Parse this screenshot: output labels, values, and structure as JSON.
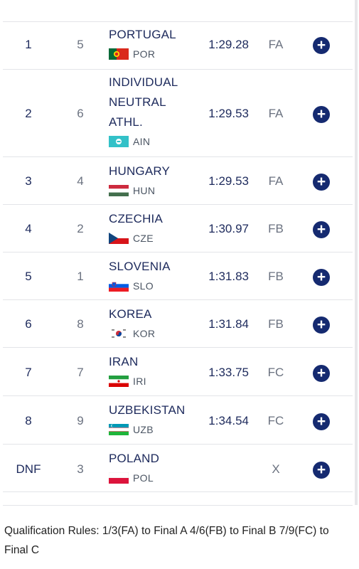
{
  "rows": [
    {
      "rank": "1",
      "lane": "5",
      "name": "PORTUGAL",
      "code": "POR",
      "flag": "portugal-flag-icon",
      "time": "1:29.28",
      "qual": "FA"
    },
    {
      "rank": "2",
      "lane": "6",
      "name": "INDIVIDUAL NEUTRAL ATHL.",
      "code": "AIN",
      "flag": "neutral-athletes-flag-icon",
      "time": "1:29.53",
      "qual": "FA"
    },
    {
      "rank": "3",
      "lane": "4",
      "name": "HUNGARY",
      "code": "HUN",
      "flag": "hungary-flag-icon",
      "time": "1:29.53",
      "qual": "FA"
    },
    {
      "rank": "4",
      "lane": "2",
      "name": "CZECHIA",
      "code": "CZE",
      "flag": "czechia-flag-icon",
      "time": "1:30.97",
      "qual": "FB"
    },
    {
      "rank": "5",
      "lane": "1",
      "name": "SLOVENIA",
      "code": "SLO",
      "flag": "slovenia-flag-icon",
      "time": "1:31.83",
      "qual": "FB"
    },
    {
      "rank": "6",
      "lane": "8",
      "name": "KOREA",
      "code": "KOR",
      "flag": "korea-flag-icon",
      "time": "1:31.84",
      "qual": "FB"
    },
    {
      "rank": "7",
      "lane": "7",
      "name": "IRAN",
      "code": "IRI",
      "flag": "iran-flag-icon",
      "time": "1:33.75",
      "qual": "FC"
    },
    {
      "rank": "8",
      "lane": "9",
      "name": "UZBEKISTAN",
      "code": "UZB",
      "flag": "uzbekistan-flag-icon",
      "time": "1:34.54",
      "qual": "FC"
    },
    {
      "rank": "DNF",
      "lane": "3",
      "name": "POLAND",
      "code": "POL",
      "flag": "poland-flag-icon",
      "time": "",
      "qual": "X"
    }
  ],
  "expand_icon": "plus-circle-icon",
  "rules_text": "Qualification Rules: 1/3(FA) to Final A 4/6(FB) to Final B 7/9(FC) to Final C",
  "colors": {
    "navy": "#152a70",
    "text": "#1d2a5c",
    "muted": "#6b7280",
    "divider": "#e3e4e8"
  }
}
